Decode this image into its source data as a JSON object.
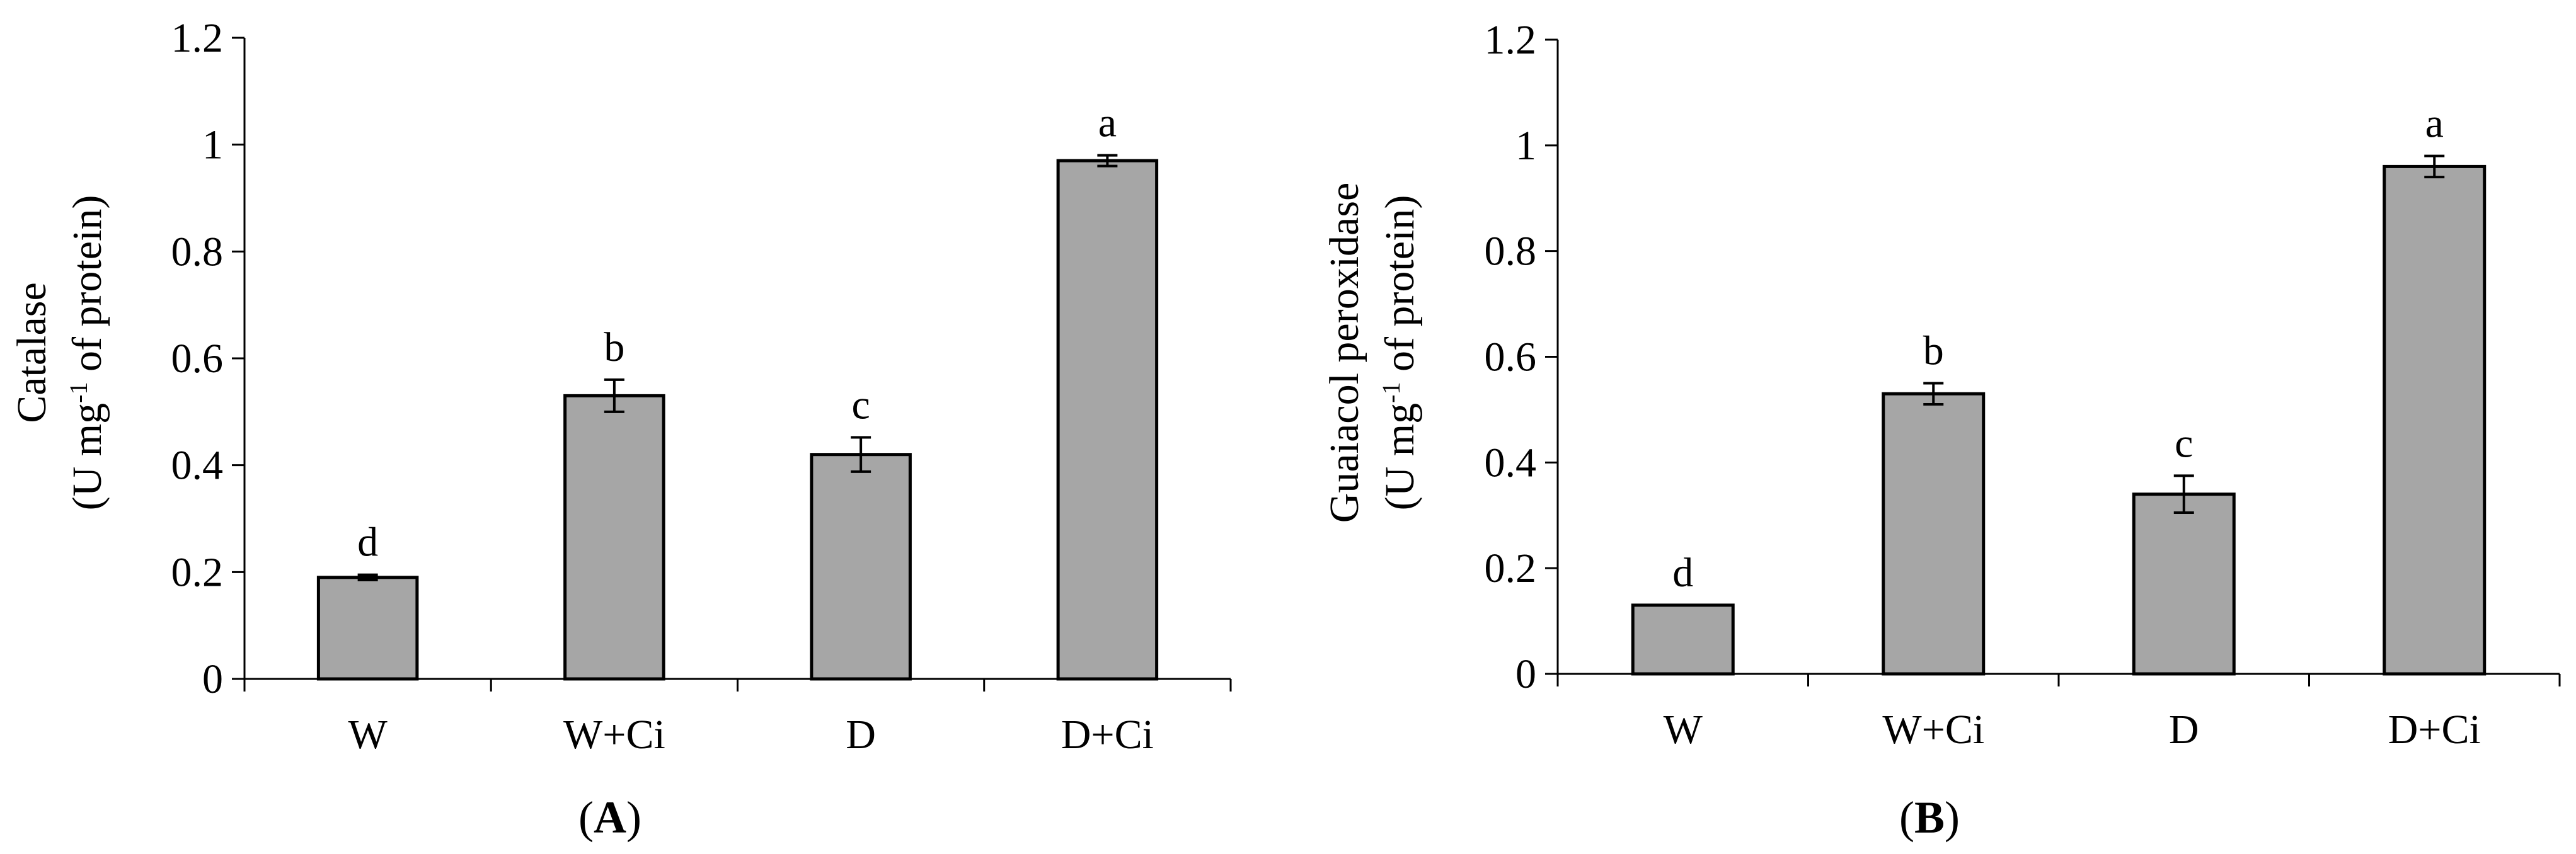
{
  "chart_data": [
    {
      "type": "bar",
      "panel": "A",
      "ylabel": "Catalase",
      "ylabel_line2": {
        "pre": "(U mg",
        "sup": "-1",
        "post": " of protein)"
      },
      "categories": [
        "W",
        "W+Ci",
        "D",
        "D+Ci"
      ],
      "values": [
        0.19,
        0.53,
        0.42,
        0.97
      ],
      "errors": [
        0.005,
        0.03,
        0.032,
        0.01
      ],
      "letters": [
        "d",
        "b",
        "c",
        "a"
      ],
      "ylim": [
        0,
        1.2
      ],
      "yticks": [
        "0",
        "0.2",
        "0.4",
        "0.6",
        "0.8",
        "1",
        "1.2"
      ],
      "grid": false,
      "bar_color": "#a6a6a6"
    },
    {
      "type": "bar",
      "panel": "B",
      "ylabel": "Guaiacol peroxidase",
      "ylabel_line2": {
        "pre": "(U mg",
        "sup": "-1",
        "post": " of protein)"
      },
      "categories": [
        "W",
        "W+Ci",
        "D",
        "D+Ci"
      ],
      "values": [
        0.13,
        0.53,
        0.34,
        0.96
      ],
      "errors": [
        0.0,
        0.02,
        0.035,
        0.02
      ],
      "letters": [
        "d",
        "b",
        "c",
        "a"
      ],
      "ylim": [
        0,
        1.2
      ],
      "yticks": [
        "0",
        "0.2",
        "0.4",
        "0.6",
        "0.8",
        "1",
        "1.2"
      ],
      "grid": false,
      "bar_color": "#a6a6a6"
    }
  ]
}
